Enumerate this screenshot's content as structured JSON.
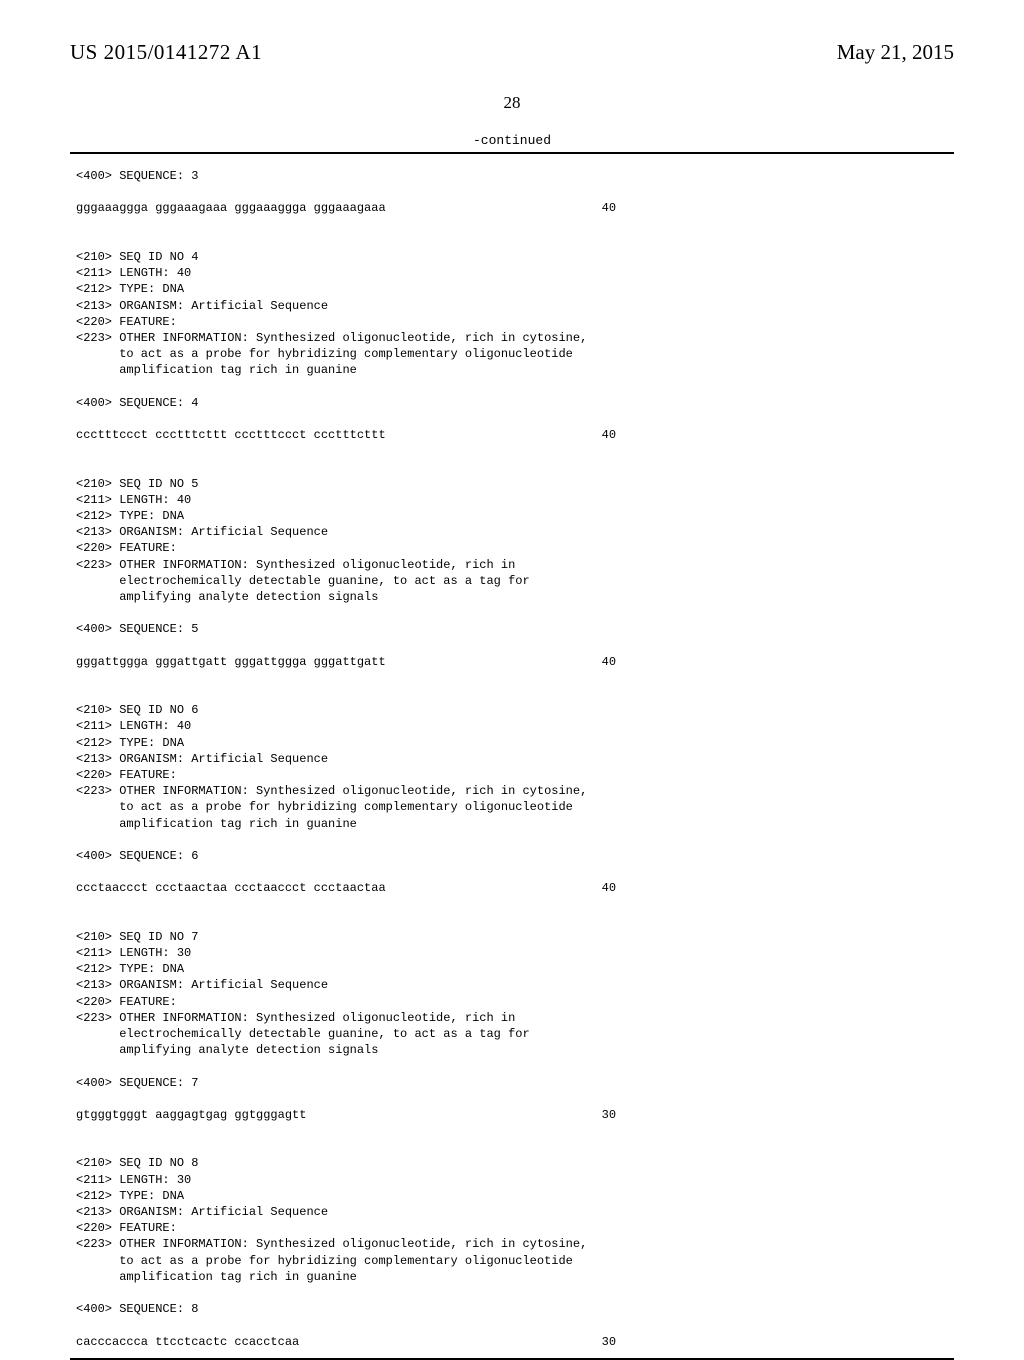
{
  "header": {
    "pub_number": "US 2015/0141272 A1",
    "pub_date": "May 21, 2015"
  },
  "page_number": "28",
  "continued_label": "-continued",
  "body_text": "<400> SEQUENCE: 3\n\ngggaaaggga gggaaagaaa gggaaaggga gggaaagaaa                              40\n\n\n<210> SEQ ID NO 4\n<211> LENGTH: 40\n<212> TYPE: DNA\n<213> ORGANISM: Artificial Sequence\n<220> FEATURE:\n<223> OTHER INFORMATION: Synthesized oligonucleotide, rich in cytosine,\n      to act as a probe for hybridizing complementary oligonucleotide\n      amplification tag rich in guanine\n\n<400> SEQUENCE: 4\n\nccctttccct ccctttcttt ccctttccct ccctttcttt                              40\n\n\n<210> SEQ ID NO 5\n<211> LENGTH: 40\n<212> TYPE: DNA\n<213> ORGANISM: Artificial Sequence\n<220> FEATURE:\n<223> OTHER INFORMATION: Synthesized oligonucleotide, rich in\n      electrochemically detectable guanine, to act as a tag for\n      amplifying analyte detection signals\n\n<400> SEQUENCE: 5\n\ngggattggga gggattgatt gggattggga gggattgatt                              40\n\n\n<210> SEQ ID NO 6\n<211> LENGTH: 40\n<212> TYPE: DNA\n<213> ORGANISM: Artificial Sequence\n<220> FEATURE:\n<223> OTHER INFORMATION: Synthesized oligonucleotide, rich in cytosine,\n      to act as a probe for hybridizing complementary oligonucleotide\n      amplification tag rich in guanine\n\n<400> SEQUENCE: 6\n\nccctaaccct ccctaactaa ccctaaccct ccctaactaa                              40\n\n\n<210> SEQ ID NO 7\n<211> LENGTH: 30\n<212> TYPE: DNA\n<213> ORGANISM: Artificial Sequence\n<220> FEATURE:\n<223> OTHER INFORMATION: Synthesized oligonucleotide, rich in\n      electrochemically detectable guanine, to act as a tag for\n      amplifying analyte detection signals\n\n<400> SEQUENCE: 7\n\ngtgggtgggt aaggagtgag ggtgggagtt                                         30\n\n\n<210> SEQ ID NO 8\n<211> LENGTH: 30\n<212> TYPE: DNA\n<213> ORGANISM: Artificial Sequence\n<220> FEATURE:\n<223> OTHER INFORMATION: Synthesized oligonucleotide, rich in cytosine,\n      to act as a probe for hybridizing complementary oligonucleotide\n      amplification tag rich in guanine\n\n<400> SEQUENCE: 8\n\ncacccaccca ttcctcactc ccacctcaa                                          30"
}
